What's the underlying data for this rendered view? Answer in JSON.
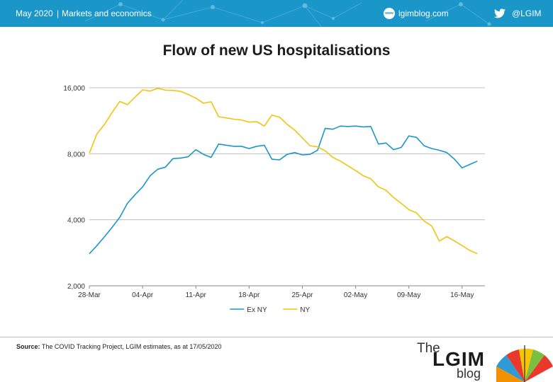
{
  "header": {
    "date": "May 2020",
    "section": "Markets and economics",
    "site": "lgimblog.com",
    "handle": "@LGIM",
    "site_icon": "www-icon",
    "social_icon": "twitter-icon",
    "bg_color": "#1a96c9"
  },
  "footer": {
    "source_label": "Source:",
    "source_text": " The COVID Tracking Project, LGIM estimates, as at 17/05/2020",
    "logo_the": "The",
    "logo_main": "LGIM",
    "logo_blog": "blog"
  },
  "chart_data": {
    "type": "line",
    "title": "Flow of new US hospitalisations",
    "y_scale": "log",
    "ylim": [
      2000,
      16000
    ],
    "yticks": [
      2000,
      4000,
      8000,
      16000
    ],
    "ytick_labels": [
      "2,000",
      "4,000",
      "8,000",
      "16,000"
    ],
    "x_start": "2020-03-28",
    "x_end": "2020-05-19",
    "xticks": [
      "2020-03-28",
      "2020-04-04",
      "2020-04-11",
      "2020-04-18",
      "2020-04-25",
      "2020-05-02",
      "2020-05-09",
      "2020-05-16"
    ],
    "xtick_labels": [
      "28-Mar",
      "04-Apr",
      "11-Apr",
      "18-Apr",
      "25-Apr",
      "02-May",
      "09-May",
      "16-May"
    ],
    "grid": "horizontal",
    "legend_position": "bottom",
    "series": [
      {
        "name": "Ex NY",
        "color": "#1a96c9",
        "points": [
          [
            "2020-03-28",
            2800
          ],
          [
            "2020-03-29",
            3050
          ],
          [
            "2020-03-30",
            3350
          ],
          [
            "2020-03-31",
            3700
          ],
          [
            "2020-04-01",
            4100
          ],
          [
            "2020-04-02",
            4750
          ],
          [
            "2020-04-03",
            5200
          ],
          [
            "2020-04-04",
            5650
          ],
          [
            "2020-04-05",
            6350
          ],
          [
            "2020-04-06",
            6800
          ],
          [
            "2020-04-07",
            6950
          ],
          [
            "2020-04-08",
            7600
          ],
          [
            "2020-04-09",
            7650
          ],
          [
            "2020-04-10",
            7750
          ],
          [
            "2020-04-11",
            8350
          ],
          [
            "2020-04-12",
            7950
          ],
          [
            "2020-04-13",
            7700
          ],
          [
            "2020-04-14",
            8850
          ],
          [
            "2020-04-15",
            8750
          ],
          [
            "2020-04-16",
            8650
          ],
          [
            "2020-04-17",
            8650
          ],
          [
            "2020-04-18",
            8450
          ],
          [
            "2020-04-19",
            8650
          ],
          [
            "2020-04-20",
            8750
          ],
          [
            "2020-04-21",
            7550
          ],
          [
            "2020-04-22",
            7500
          ],
          [
            "2020-04-23",
            7950
          ],
          [
            "2020-04-24",
            8100
          ],
          [
            "2020-04-25",
            7900
          ],
          [
            "2020-04-26",
            7950
          ],
          [
            "2020-04-27",
            8300
          ],
          [
            "2020-04-28",
            10450
          ],
          [
            "2020-04-29",
            10350
          ],
          [
            "2020-04-30",
            10700
          ],
          [
            "2020-05-01",
            10650
          ],
          [
            "2020-05-02",
            10700
          ],
          [
            "2020-05-03",
            10600
          ],
          [
            "2020-05-04",
            10650
          ],
          [
            "2020-05-05",
            8850
          ],
          [
            "2020-05-06",
            8950
          ],
          [
            "2020-05-07",
            8350
          ],
          [
            "2020-05-08",
            8550
          ],
          [
            "2020-05-09",
            9650
          ],
          [
            "2020-05-10",
            9500
          ],
          [
            "2020-05-11",
            8700
          ],
          [
            "2020-05-12",
            8450
          ],
          [
            "2020-05-13",
            8300
          ],
          [
            "2020-05-14",
            8100
          ],
          [
            "2020-05-15",
            7550
          ],
          [
            "2020-05-16",
            6900
          ],
          [
            "2020-05-17",
            7150
          ],
          [
            "2020-05-18",
            7400
          ]
        ]
      },
      {
        "name": "NY",
        "color": "#f2c40f",
        "points": [
          [
            "2020-03-28",
            8050
          ],
          [
            "2020-03-29",
            9850
          ],
          [
            "2020-03-30",
            10900
          ],
          [
            "2020-03-31",
            12350
          ],
          [
            "2020-04-01",
            13850
          ],
          [
            "2020-04-02",
            13400
          ],
          [
            "2020-04-03",
            14500
          ],
          [
            "2020-04-04",
            15650
          ],
          [
            "2020-04-05",
            15450
          ],
          [
            "2020-04-06",
            15900
          ],
          [
            "2020-04-07",
            15600
          ],
          [
            "2020-04-08",
            15550
          ],
          [
            "2020-04-09",
            15400
          ],
          [
            "2020-04-10",
            14900
          ],
          [
            "2020-04-11",
            14350
          ],
          [
            "2020-04-12",
            13600
          ],
          [
            "2020-04-13",
            13800
          ],
          [
            "2020-04-14",
            11800
          ],
          [
            "2020-04-15",
            11650
          ],
          [
            "2020-04-16",
            11500
          ],
          [
            "2020-04-17",
            11400
          ],
          [
            "2020-04-18",
            11150
          ],
          [
            "2020-04-19",
            11200
          ],
          [
            "2020-04-20",
            10700
          ],
          [
            "2020-04-21",
            12000
          ],
          [
            "2020-04-22",
            11750
          ],
          [
            "2020-04-23",
            10900
          ],
          [
            "2020-04-24",
            10250
          ],
          [
            "2020-04-25",
            9450
          ],
          [
            "2020-04-26",
            8700
          ],
          [
            "2020-04-27",
            8600
          ],
          [
            "2020-04-28",
            8250
          ],
          [
            "2020-04-29",
            7700
          ],
          [
            "2020-04-30",
            7400
          ],
          [
            "2020-05-01",
            7050
          ],
          [
            "2020-05-02",
            6700
          ],
          [
            "2020-05-03",
            6350
          ],
          [
            "2020-05-04",
            6150
          ],
          [
            "2020-05-05",
            5650
          ],
          [
            "2020-05-06",
            5450
          ],
          [
            "2020-05-07",
            5050
          ],
          [
            "2020-05-08",
            4750
          ],
          [
            "2020-05-09",
            4450
          ],
          [
            "2020-05-10",
            4300
          ],
          [
            "2020-05-11",
            3950
          ],
          [
            "2020-05-12",
            3750
          ],
          [
            "2020-05-13",
            3200
          ],
          [
            "2020-05-14",
            3350
          ],
          [
            "2020-05-15",
            3200
          ],
          [
            "2020-05-16",
            3050
          ],
          [
            "2020-05-17",
            2900
          ],
          [
            "2020-05-18",
            2800
          ]
        ]
      }
    ]
  }
}
